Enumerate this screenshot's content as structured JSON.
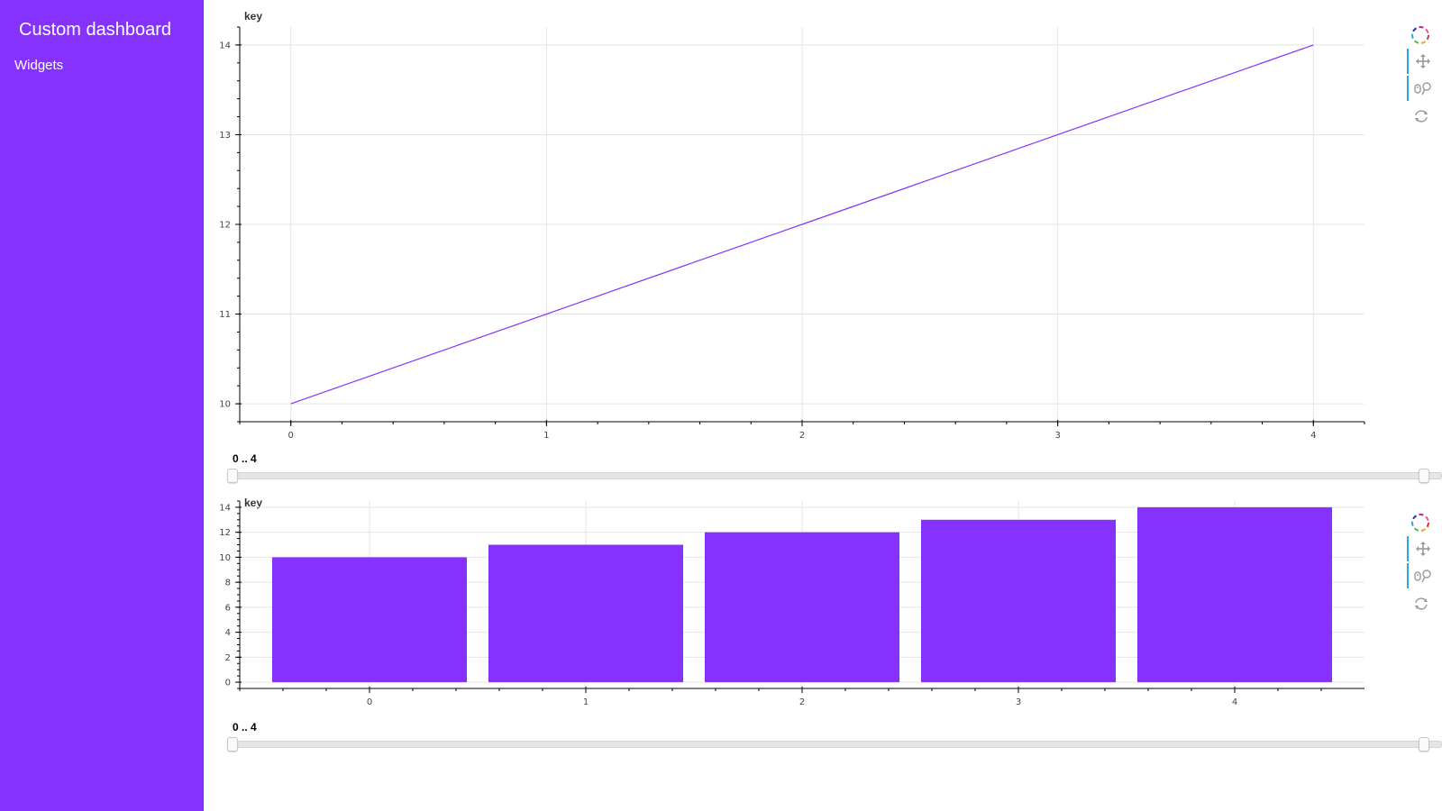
{
  "sidebar": {
    "title": "Custom dashboard",
    "nav_item": "Widgets",
    "background": "#8533fc"
  },
  "accent_color": "#8533fc",
  "toolbar": {
    "tools": [
      "bokeh-logo-icon",
      "pan-icon",
      "wheel-zoom-icon",
      "reset-icon"
    ]
  },
  "plots": [
    {
      "plot_title": "key",
      "range_label": "0 .. 4",
      "slider_range": [
        0,
        4
      ],
      "slider_value": [
        0,
        4
      ],
      "chart_data": {
        "type": "line",
        "title": "key",
        "xlabel": "",
        "ylabel": "",
        "x": [
          0,
          1,
          2,
          3,
          4
        ],
        "values": [
          10,
          11,
          12,
          13,
          14
        ],
        "xticks": [
          "0",
          "1",
          "2",
          "3",
          "4"
        ],
        "yticks": [
          "10",
          "11",
          "12",
          "13",
          "14"
        ],
        "xlim": [
          -0.2,
          4.2
        ],
        "ylim": [
          9.8,
          14.2
        ],
        "grid": true,
        "color": "#8533fc"
      }
    },
    {
      "plot_title": "key",
      "range_label": "0 .. 4",
      "slider_range": [
        0,
        4
      ],
      "slider_value": [
        0,
        4
      ],
      "chart_data": {
        "type": "bar",
        "title": "key",
        "xlabel": "",
        "ylabel": "",
        "categories": [
          "0",
          "1",
          "2",
          "3",
          "4"
        ],
        "values": [
          10,
          11,
          12,
          13,
          14
        ],
        "bar_width": 0.9,
        "yticks": [
          "0",
          "2",
          "4",
          "6",
          "8",
          "10",
          "12",
          "14"
        ],
        "xlim": [
          -0.6,
          4.6
        ],
        "ylim": [
          -0.5,
          14.5
        ],
        "grid": true,
        "color": "#8533fc"
      }
    }
  ]
}
